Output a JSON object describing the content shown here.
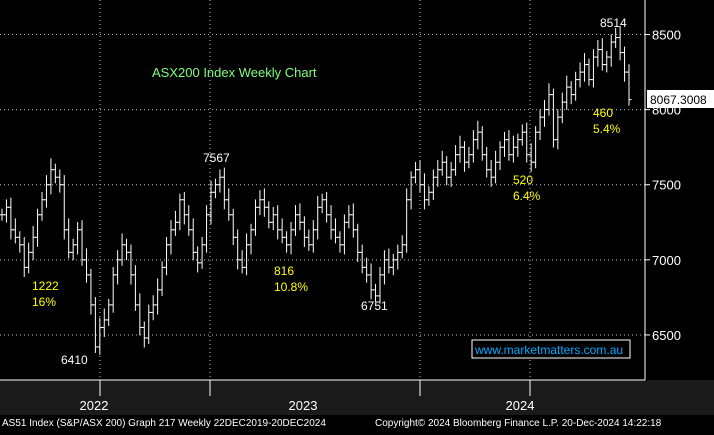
{
  "chart_data": {
    "type": "line",
    "title": "ASX200 Index Weekly Chart",
    "y_ticks": [
      6500,
      7000,
      7500,
      8000,
      8500
    ],
    "ylim": [
      6200,
      8730
    ],
    "x_labels": [
      {
        "label": "2022",
        "week": 94
      },
      {
        "label": "2023",
        "week": 303
      },
      {
        "label": "2024",
        "week": 520
      }
    ],
    "grid": true,
    "last_value_label": "8067.3008",
    "last_value": 8067.3,
    "series": [
      {
        "close": [
          7300,
          7350,
          7200,
          7150,
          7100,
          6950,
          7050,
          7150,
          7300,
          7400,
          7500,
          7600,
          7550,
          7500,
          7200,
          7050,
          7100,
          7200,
          7000,
          6900,
          6700,
          6420,
          6550,
          6600,
          6700,
          6900,
          7000,
          7100,
          7050,
          6900,
          6700,
          6550,
          6480,
          6650,
          6700,
          6800,
          6950,
          7100,
          7200,
          7250,
          7400,
          7300,
          7200,
          7050,
          6980,
          7100,
          7300,
          7450,
          7500,
          7550,
          7400,
          7300,
          7150,
          7000,
          6950,
          7100,
          7200,
          7350,
          7400,
          7350,
          7250,
          7300,
          7200,
          7150,
          7100,
          7200,
          7300,
          7250,
          7150,
          7100,
          7200,
          7350,
          7400,
          7300,
          7200,
          7150,
          7100,
          7250,
          7300,
          7200,
          7050,
          6950,
          6900,
          6800,
          6760,
          6900,
          7000,
          6950,
          7000,
          7050,
          7100,
          7400,
          7550,
          7600,
          7500,
          7400,
          7450,
          7550,
          7600,
          7650,
          7550,
          7600,
          7700,
          7750,
          7650,
          7700,
          7800,
          7850,
          7700,
          7600,
          7550,
          7650,
          7750,
          7800,
          7700,
          7750,
          7800,
          7850,
          7700,
          7650,
          7850,
          7950,
          8000,
          8100,
          7800,
          7950,
          8050,
          8150,
          8100,
          8200,
          8250,
          8300,
          8200,
          8350,
          8400,
          8300,
          8350,
          8450,
          8480,
          8380,
          8250,
          8067
        ]
      }
    ],
    "annotations": [
      {
        "text": "1222",
        "color": "#ffff00"
      },
      {
        "text": "16%",
        "color": "#ffff00"
      },
      {
        "text": "6410",
        "color": "#ffffff"
      },
      {
        "text": "7567",
        "color": "#ffffff"
      },
      {
        "text": "816",
        "color": "#ffff00"
      },
      {
        "text": "10.8%",
        "color": "#ffff00"
      },
      {
        "text": "6751",
        "color": "#ffffff"
      },
      {
        "text": "520",
        "color": "#ffff00"
      },
      {
        "text": "6.4%",
        "color": "#ffff00"
      },
      {
        "text": "460",
        "color": "#ffff00"
      },
      {
        "text": "5.4%",
        "color": "#ffff00"
      },
      {
        "text": "8514",
        "color": "#ffffff"
      }
    ],
    "watermark": "www.marketmatters.com.au",
    "footer_left": "AS51 Index (S&P/ASX 200) Graph 217  Weekly 22DEC2019-20DEC2024",
    "footer_right": "Copyright© 2024 Bloomberg Finance L.P.   20-Dec-2024 14:22:18"
  },
  "colors": {
    "background": "#000000",
    "bars": "#ffffff",
    "grid": "#bbbbbb",
    "title": "#7fff7f",
    "annotation": "#ffff00",
    "watermark": "#00aaff",
    "axis_band": "#1a1a1a"
  }
}
